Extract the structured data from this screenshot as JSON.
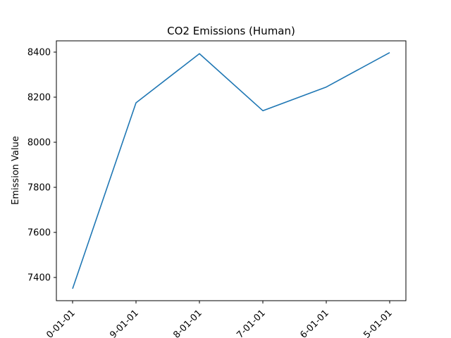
{
  "chart_data": {
    "type": "line",
    "title": "CO2 Emissions (Human)",
    "xlabel": "",
    "ylabel": "Emission Value",
    "categories": [
      "0-01-01",
      "9-01-01",
      "8-01-01",
      "7-01-01",
      "6-01-01",
      "5-01-01"
    ],
    "series": [
      {
        "values": [
          7350,
          8175,
          8393,
          8140,
          8245,
          8398
        ]
      }
    ],
    "yticks": [
      7400,
      7600,
      7800,
      8000,
      8200,
      8400
    ],
    "ylim": [
      7297,
      8450
    ],
    "grid": false,
    "line_color": "#1f77b4"
  }
}
